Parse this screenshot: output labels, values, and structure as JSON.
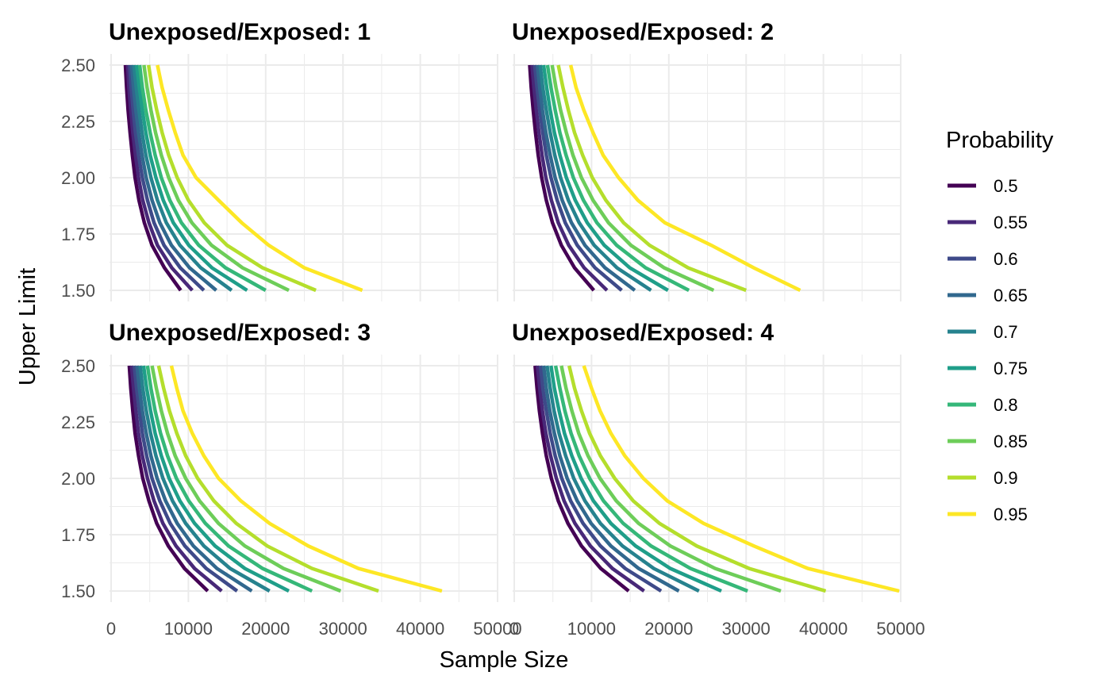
{
  "chart_data": {
    "type": "line",
    "facet_prefix": "Unexposed/Exposed: ",
    "xlabel": "Sample Size",
    "ylabel": "Upper Limit",
    "xlim": [
      0,
      50000
    ],
    "ylim": [
      1.5,
      2.5
    ],
    "x_ticks": [
      "0",
      "10000",
      "20000",
      "30000",
      "40000",
      "50000"
    ],
    "y_ticks": [
      "1.50",
      "1.75",
      "2.00",
      "2.25",
      "2.50"
    ],
    "grid": true,
    "legend": {
      "title": "Probability",
      "position": "right",
      "entries": [
        "0.5",
        "0.55",
        "0.6",
        "0.65",
        "0.7",
        "0.75",
        "0.8",
        "0.85",
        "0.9",
        "0.95"
      ]
    },
    "colors": [
      "#440154",
      "#482878",
      "#3e4a89",
      "#31688e",
      "#26828e",
      "#1f9e89",
      "#35b779",
      "#6dcd59",
      "#b4de2c",
      "#fde725"
    ],
    "y": [
      1.5,
      1.6,
      1.7,
      1.8,
      1.9,
      2.0,
      2.1,
      2.2,
      2.3,
      2.4,
      2.5
    ],
    "panels": [
      {
        "title": "1",
        "series": [
          {
            "name": "0.5",
            "x": [
              9000,
              6900,
              5300,
              4300,
              3600,
              3100,
              2750,
              2450,
              2200,
              2000,
              1850
            ]
          },
          {
            "name": "0.55",
            "x": [
              10500,
              7850,
              6000,
              4900,
              4100,
              3550,
              3150,
              2800,
              2550,
              2300,
              2150
            ]
          },
          {
            "name": "0.6",
            "x": [
              12000,
              8950,
              6850,
              5550,
              4700,
              4050,
              3550,
              3150,
              2850,
              2600,
              2400
            ]
          },
          {
            "name": "0.65",
            "x": [
              13600,
              10150,
              7800,
              6300,
              5300,
              4550,
              4000,
              3550,
              3200,
              2900,
              2650
            ]
          },
          {
            "name": "0.7",
            "x": [
              15600,
              11600,
              8900,
              7150,
              6000,
              5150,
              4500,
              4000,
              3600,
              3250,
              2950
            ]
          },
          {
            "name": "0.75",
            "x": [
              17600,
              13050,
              10050,
              8050,
              6750,
              5800,
              5050,
              4500,
              4050,
              3650,
              3300
            ]
          },
          {
            "name": "0.8",
            "x": [
              20000,
              14800,
              11350,
              9100,
              7600,
              6500,
              5700,
              5050,
              4500,
              4050,
              3700
            ]
          },
          {
            "name": "0.85",
            "x": [
              23000,
              17000,
              13000,
              10450,
              8700,
              7450,
              6500,
              5750,
              5150,
              4650,
              4250
            ]
          },
          {
            "name": "0.9",
            "x": [
              26500,
              19600,
              15000,
              12050,
              10000,
              8550,
              7450,
              6600,
              5900,
              5300,
              4850
            ]
          },
          {
            "name": "0.95",
            "x": [
              32500,
              25000,
              20400,
              16900,
              13900,
              11000,
              9300,
              8300,
              7400,
              6600,
              6000
            ]
          }
        ]
      },
      {
        "title": "2",
        "series": [
          {
            "name": "0.5",
            "x": [
              10300,
              7800,
              6100,
              4950,
              4150,
              3550,
              3100,
              2750,
              2450,
              2200,
              2000
            ]
          },
          {
            "name": "0.55",
            "x": [
              12000,
              9050,
              7050,
              5700,
              4800,
              4100,
              3600,
              3200,
              2850,
              2550,
              2300
            ]
          },
          {
            "name": "0.6",
            "x": [
              13900,
              10450,
              8150,
              6600,
              5550,
              4750,
              4150,
              3700,
              3300,
              2950,
              2650
            ]
          },
          {
            "name": "0.65",
            "x": [
              15600,
              11750,
              9150,
              7400,
              6200,
              5300,
              4650,
              4100,
              3650,
              3300,
              3000
            ]
          },
          {
            "name": "0.7",
            "x": [
              17700,
              13300,
              10350,
              8400,
              7000,
              6000,
              5250,
              4650,
              4150,
              3700,
              3350
            ]
          },
          {
            "name": "0.75",
            "x": [
              19900,
              14950,
              11650,
              9450,
              7900,
              6750,
              5900,
              5200,
              4650,
              4200,
              3800
            ]
          },
          {
            "name": "0.8",
            "x": [
              22600,
              17000,
              13250,
              10700,
              8950,
              7650,
              6700,
              5900,
              5300,
              4750,
              4300
            ]
          },
          {
            "name": "0.85",
            "x": [
              25800,
              19400,
              15100,
              12200,
              10200,
              8700,
              7600,
              6750,
              6000,
              5400,
              4900
            ]
          },
          {
            "name": "0.9",
            "x": [
              30000,
              22500,
              17500,
              14150,
              11850,
              10100,
              8850,
              7800,
              7000,
              6300,
              5700
            ]
          },
          {
            "name": "0.95",
            "x": [
              37000,
              31000,
              25500,
              19500,
              16000,
              13500,
              11500,
              10200,
              9000,
              8000,
              7300
            ]
          }
        ]
      },
      {
        "title": "3",
        "series": [
          {
            "name": "0.5",
            "x": [
              12500,
              9500,
              7400,
              5900,
              4900,
              4100,
              3550,
              3100,
              2800,
              2550,
              2350
            ]
          },
          {
            "name": "0.55",
            "x": [
              14300,
              10800,
              8400,
              6700,
              5550,
              4700,
              4050,
              3550,
              3200,
              2900,
              2650
            ]
          },
          {
            "name": "0.6",
            "x": [
              16300,
              12300,
              9550,
              7650,
              6300,
              5300,
              4600,
              4050,
              3650,
              3300,
              3000
            ]
          },
          {
            "name": "0.65",
            "x": [
              18200,
              13700,
              10650,
              8550,
              7050,
              5950,
              5150,
              4550,
              4050,
              3650,
              3350
            ]
          },
          {
            "name": "0.7",
            "x": [
              20500,
              15400,
              12000,
              9650,
              7950,
              6700,
              5800,
              5100,
              4550,
              4100,
              3750
            ]
          },
          {
            "name": "0.75",
            "x": [
              23000,
              17300,
              13450,
              10800,
              8900,
              7500,
              6500,
              5700,
              5100,
              4600,
              4200
            ]
          },
          {
            "name": "0.8",
            "x": [
              26000,
              19600,
              15200,
              12200,
              10050,
              8450,
              7300,
              6400,
              5700,
              5150,
              4700
            ]
          },
          {
            "name": "0.85",
            "x": [
              29700,
              22300,
              17300,
              13900,
              11450,
              9650,
              8300,
              7300,
              6500,
              5850,
              5300
            ]
          },
          {
            "name": "0.9",
            "x": [
              34600,
              26000,
              20200,
              16200,
              13300,
              11200,
              9650,
              8500,
              7550,
              6800,
              6150
            ]
          },
          {
            "name": "0.95",
            "x": [
              42800,
              32000,
              25500,
              20500,
              16800,
              13900,
              12000,
              10500,
              9300,
              8500,
              7800
            ]
          }
        ]
      },
      {
        "title": "4",
        "series": [
          {
            "name": "0.5",
            "x": [
              14800,
              11200,
              8700,
              6950,
              5700,
              4800,
              4150,
              3650,
              3250,
              2950,
              2700
            ]
          },
          {
            "name": "0.55",
            "x": [
              16800,
              12700,
              9850,
              7850,
              6450,
              5450,
              4700,
              4100,
              3650,
              3300,
              3000
            ]
          },
          {
            "name": "0.6",
            "x": [
              19000,
              14350,
              11150,
              8900,
              7300,
              6150,
              5300,
              4650,
              4150,
              3700,
              3400
            ]
          },
          {
            "name": "0.65",
            "x": [
              21300,
              16100,
              12500,
              9950,
              8150,
              6850,
              5900,
              5200,
              4600,
              4150,
              3800
            ]
          },
          {
            "name": "0.7",
            "x": [
              23900,
              18050,
              14000,
              11150,
              9150,
              7700,
              6650,
              5800,
              5150,
              4650,
              4250
            ]
          },
          {
            "name": "0.75",
            "x": [
              26800,
              20200,
              15700,
              12500,
              10250,
              8650,
              7450,
              6500,
              5800,
              5200,
              4750
            ]
          },
          {
            "name": "0.8",
            "x": [
              30200,
              22800,
              17700,
              14100,
              11550,
              9750,
              8400,
              7350,
              6550,
              5900,
              5350
            ]
          },
          {
            "name": "0.85",
            "x": [
              34500,
              26000,
              20200,
              16100,
              13200,
              11100,
              9550,
              8350,
              7450,
              6700,
              6100
            ]
          },
          {
            "name": "0.9",
            "x": [
              40300,
              30400,
              23600,
              18800,
              15400,
              13000,
              11150,
              9750,
              8700,
              7800,
              7100
            ]
          },
          {
            "name": "0.95",
            "x": [
              49800,
              38000,
              31000,
              24500,
              19800,
              16700,
              14300,
              12500,
              11100,
              10000,
              9000
            ]
          }
        ]
      }
    ]
  }
}
